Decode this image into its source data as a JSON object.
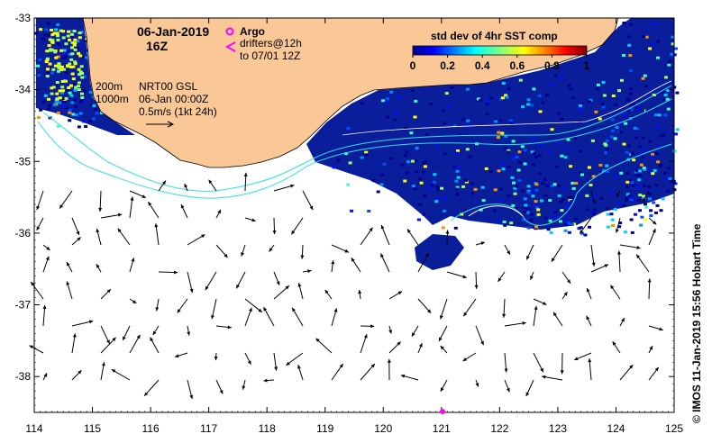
{
  "title": {
    "date": "06-Jan-2019",
    "time": "16Z"
  },
  "legend": {
    "argo_label": "Argo",
    "drifters_line1": "drifters@12h",
    "drifters_line2": "to 07/01 12Z",
    "depth_200": "200m",
    "depth_1000": "1000m",
    "nrt_line1": "NRT00 GSL",
    "nrt_line2": "06-Jan 00:00Z",
    "nrt_line3": "0.5m/s (1kt 24h)"
  },
  "colorbar": {
    "title": "std dev of 4hr SST comp",
    "ticks": [
      "0",
      "0.2",
      "0.4",
      "0.6",
      "0.8",
      "1"
    ],
    "min": 0,
    "max": 1
  },
  "axes": {
    "x_ticks": [
      "114",
      "115",
      "116",
      "117",
      "118",
      "119",
      "120",
      "121",
      "122",
      "123",
      "124",
      "125"
    ],
    "y_ticks": [
      "-33",
      "-34",
      "-35",
      "-36",
      "-37",
      "-38"
    ],
    "lon_range": [
      114,
      125
    ],
    "lat_range": [
      -38.5,
      -33
    ]
  },
  "credit": "© IMOS 11-Jan-2019 15:56 Hobart Time",
  "colors": {
    "land": "#f9c896",
    "sst_background": "#0a1e9c",
    "isobath": "#30e0e0",
    "vectors": "#000000",
    "argo": "#ff00ff"
  }
}
